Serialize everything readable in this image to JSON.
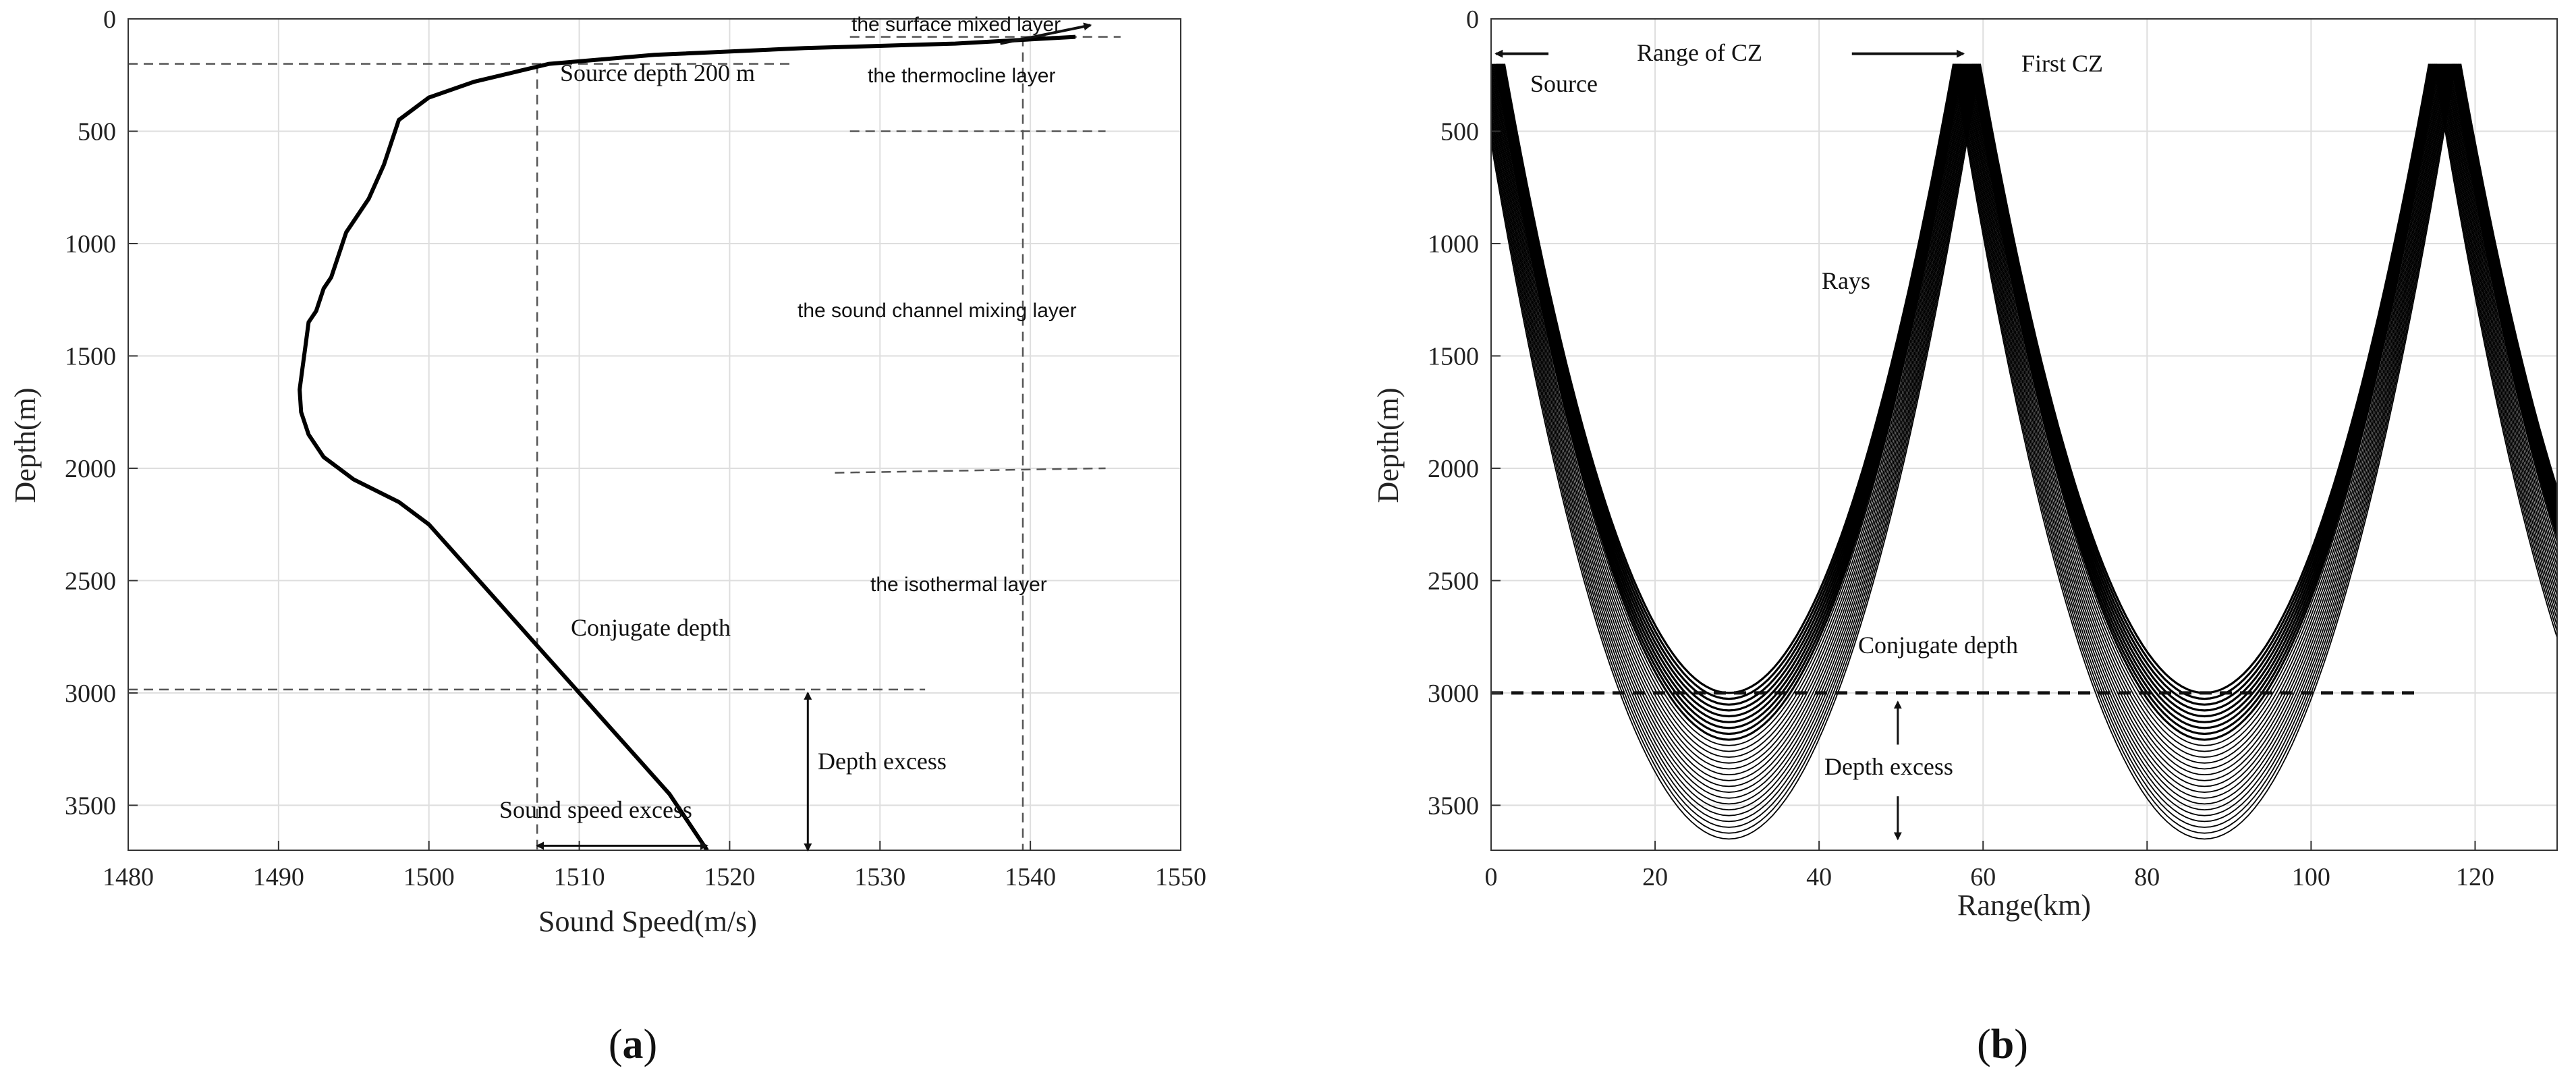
{
  "chart_data": [
    {
      "type": "line",
      "panel_label": {
        "open": "(",
        "letter": "a",
        "close": ")"
      },
      "xlabel": "Sound Speed(m/s)",
      "ylabel": "Depth(m)",
      "xlim": [
        1480,
        1550
      ],
      "ylim": [
        0,
        3700
      ],
      "y_inverted": true,
      "grid": true,
      "xticks": [
        1480,
        1490,
        1500,
        1510,
        1520,
        1530,
        1540,
        1550
      ],
      "yticks": [
        0,
        500,
        1000,
        1500,
        2000,
        2500,
        3000,
        3500
      ],
      "series": [
        {
          "x": [
            1543,
            1535,
            1525,
            1515,
            1508,
            1503,
            1500,
            1498,
            1497.5,
            1497,
            1496,
            1495,
            1494.5,
            1494,
            1493.5,
            1493,
            1492.5,
            1492,
            1491.8,
            1491.6,
            1491.4,
            1491.5,
            1492,
            1493,
            1495,
            1498,
            1500,
            1502,
            1504,
            1506,
            1508,
            1510,
            1512,
            1514,
            1516,
            1518.5
          ],
          "y": [
            80,
            110,
            130,
            160,
            200,
            280,
            350,
            450,
            550,
            650,
            800,
            900,
            950,
            1050,
            1150,
            1200,
            1300,
            1350,
            1450,
            1550,
            1650,
            1750,
            1850,
            1950,
            2050,
            2150,
            2250,
            2400,
            2550,
            2700,
            2850,
            3000,
            3150,
            3300,
            3450,
            3700
          ]
        }
      ],
      "annotations": {
        "surface_layer": "the surface mixed layer",
        "source_depth": "Source depth 200 m",
        "thermocline": "the thermocline layer",
        "channel": "the sound channel mixing layer",
        "isothermal": "the isothermal layer",
        "conjugate": "Conjugate depth",
        "depth_excess": "Depth excess",
        "speed_excess": "Sound speed excess"
      }
    },
    {
      "type": "line",
      "panel_label": {
        "open": "(",
        "letter": "b",
        "close": ")"
      },
      "xlabel": "Range(km)",
      "ylabel": "Depth(m)",
      "xlim": [
        0,
        130
      ],
      "ylim": [
        0,
        3700
      ],
      "y_inverted": true,
      "grid": true,
      "xticks": [
        0,
        20,
        40,
        60,
        80,
        100,
        120
      ],
      "yticks": [
        0,
        500,
        1000,
        1500,
        2000,
        2500,
        3000,
        3500
      ],
      "source_depth": 200,
      "cz_range": 58,
      "cz_half_width": 29,
      "conjugate_depth": 3000,
      "max_ray_depth": 3650,
      "annotations": {
        "source": "Source",
        "range_cz": "Range of CZ",
        "first_cz": "First CZ",
        "rays": "Rays",
        "conjugate": "Conjugate depth",
        "depth_excess": "Depth excess"
      }
    }
  ]
}
